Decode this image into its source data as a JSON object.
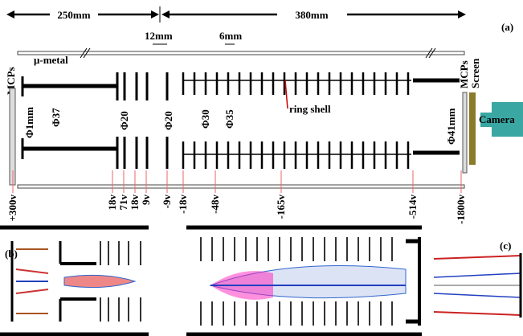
{
  "header": {
    "left_length": "250mm",
    "right_length": "380mm",
    "panel_a": "(a)",
    "gap": "12mm",
    "pitch": "6mm"
  },
  "labels": {
    "mu_metal": "μ-metal",
    "mcps_left": "MCPs",
    "d1": "Φ1mm",
    "d37": "Φ37",
    "d20a": "Φ20",
    "d20b": "Φ20",
    "d30": "Φ30",
    "d35": "Φ35",
    "ring_shell": "ring shell",
    "mcps_right": "MCPs",
    "screen": "Screen",
    "d41": "Φ41mm",
    "camera": "Camera"
  },
  "voltages": [
    "+300v",
    "18v",
    "71v",
    "18v",
    "9v",
    "-9v",
    "-18v",
    "-48v",
    "-165v",
    "-514v",
    "-1800v"
  ],
  "panels": {
    "b": "(b)",
    "c": "(c)"
  }
}
